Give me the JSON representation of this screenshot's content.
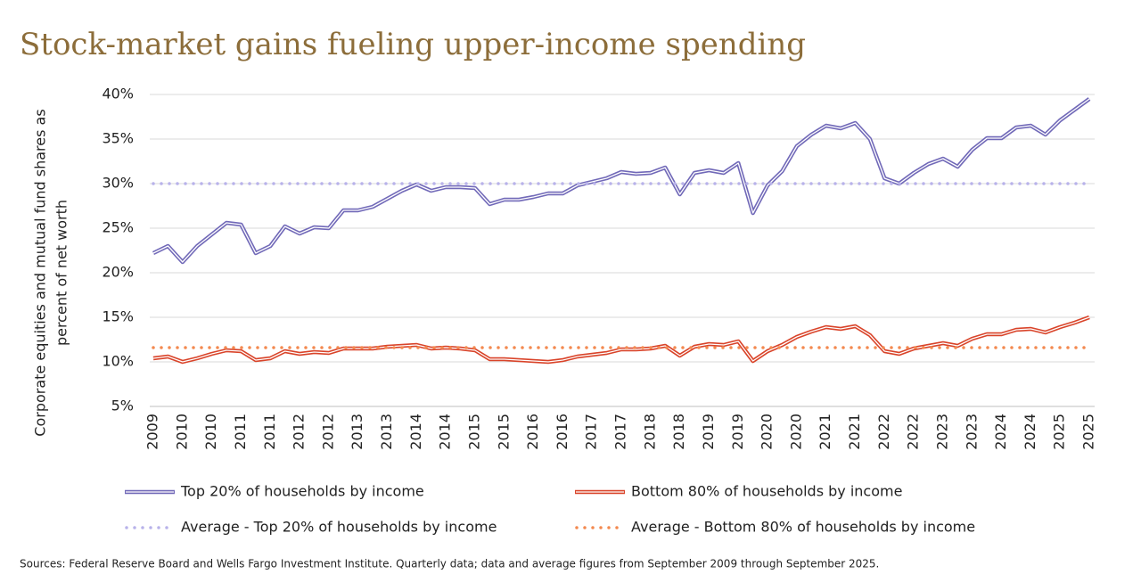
{
  "chart_data": {
    "type": "line",
    "title": "Stock-market gains fueling upper-income spending",
    "ylabel": [
      "Corporate equities and mutual fund shares as",
      "percent of net worth"
    ],
    "categories": [
      "2009",
      null,
      "2010",
      null,
      "2010",
      null,
      "2011",
      null,
      "2011",
      null,
      "2012",
      null,
      "2012",
      null,
      "2013",
      null,
      "2013",
      null,
      "2014",
      null,
      "2014",
      null,
      "2015",
      null,
      "2015",
      null,
      "2016",
      null,
      "2016",
      null,
      "2017",
      null,
      "2017",
      null,
      "2018",
      null,
      "2018",
      null,
      "2019",
      null,
      "2019",
      null,
      "2020",
      null,
      "2020",
      null,
      "2021",
      null,
      "2021",
      null,
      "2022",
      null,
      "2022",
      null,
      "2023",
      null,
      "2023",
      null,
      "2024",
      null,
      "2024",
      null,
      "2025",
      null,
      "2025"
    ],
    "series": [
      {
        "name": "Top 20% of households by income",
        "color": "#7169b8",
        "style": "double",
        "values": [
          22.2,
          23.0,
          21.2,
          23.0,
          24.3,
          25.6,
          25.4,
          22.2,
          23.0,
          25.2,
          24.4,
          25.1,
          25.0,
          27.0,
          27.0,
          27.4,
          28.3,
          29.2,
          29.9,
          29.2,
          29.6,
          29.6,
          29.5,
          27.7,
          28.2,
          28.2,
          28.5,
          28.9,
          28.9,
          29.8,
          30.2,
          30.6,
          31.3,
          31.1,
          31.2,
          31.8,
          28.8,
          31.2,
          31.5,
          31.2,
          32.3,
          26.7,
          29.8,
          31.4,
          34.2,
          35.5,
          36.5,
          36.2,
          36.8,
          35.0,
          30.6,
          30.0,
          31.2,
          32.2,
          32.8,
          31.9,
          33.8,
          35.1,
          35.1,
          36.3,
          36.5,
          35.5,
          37.1,
          38.3,
          39.5
        ]
      },
      {
        "name": "Bottom 80% of households by income",
        "color": "#d9442a",
        "style": "double",
        "values": [
          10.4,
          10.6,
          10.0,
          10.4,
          10.9,
          11.3,
          11.2,
          10.2,
          10.4,
          11.2,
          10.9,
          11.1,
          11.0,
          11.5,
          11.5,
          11.5,
          11.7,
          11.8,
          11.9,
          11.5,
          11.6,
          11.5,
          11.3,
          10.3,
          10.3,
          10.2,
          10.1,
          10.0,
          10.2,
          10.6,
          10.8,
          11.0,
          11.4,
          11.4,
          11.5,
          11.8,
          10.7,
          11.7,
          12.0,
          11.9,
          12.3,
          10.1,
          11.2,
          11.9,
          12.8,
          13.4,
          13.9,
          13.7,
          14.0,
          13.0,
          11.2,
          10.9,
          11.5,
          11.8,
          12.1,
          11.8,
          12.6,
          13.1,
          13.1,
          13.6,
          13.7,
          13.3,
          13.9,
          14.4,
          15.0
        ]
      },
      {
        "name": "Average - Top 20% of households by income",
        "color": "#b8b2ea",
        "style": "dotted",
        "value": 30
      },
      {
        "name": "Average - Bottom 80% of households by income",
        "color": "#f3894f",
        "style": "dotted",
        "value": 11.6
      }
    ],
    "ylim": [
      5,
      40
    ],
    "yticks": [
      {
        "value": 5,
        "label": "5%"
      },
      {
        "value": 10,
        "label": "10%"
      },
      {
        "value": 15,
        "label": "15%"
      },
      {
        "value": 20,
        "label": "20%"
      },
      {
        "value": 25,
        "label": "25%"
      },
      {
        "value": 30,
        "label": "30%"
      },
      {
        "value": 35,
        "label": "35%"
      },
      {
        "value": 40,
        "label": "40%"
      }
    ],
    "grid": true,
    "source": "Sources: Federal Reserve Board and Wells Fargo Investment Institute. Quarterly data; data and average figures from September 2009 through September 2025."
  }
}
